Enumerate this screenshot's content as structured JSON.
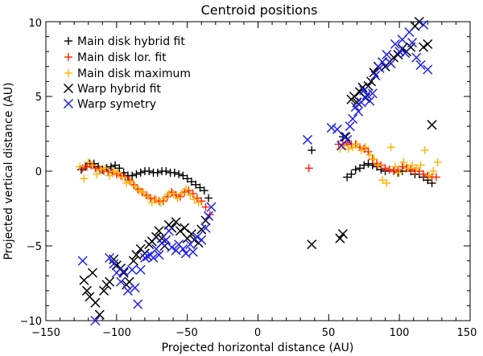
{
  "chart_data": {
    "type": "scatter",
    "title": "Centroid positions",
    "xlabel": "Projected horizontal distance (AU)",
    "ylabel": "Projected vertical distance (AU)",
    "xlim": [
      -150,
      150
    ],
    "ylim": [
      -10,
      10
    ],
    "xticks": [
      -150,
      -100,
      -50,
      0,
      50,
      100,
      150
    ],
    "yticks": [
      -10,
      -5,
      0,
      5,
      10
    ],
    "xtick_labels": [
      "−150",
      "−100",
      "−50",
      "0",
      "50",
      "100",
      "150"
    ],
    "ytick_labels": [
      "−10",
      "−5",
      "0",
      "5",
      "10"
    ],
    "legend_position": "top-left",
    "series": [
      {
        "name": "Main disk hybrid fit",
        "marker": "plus",
        "color": "#000000",
        "points": [
          [
            -125,
            0.1
          ],
          [
            -122,
            0.3
          ],
          [
            -119,
            0.5
          ],
          [
            -116,
            0.5
          ],
          [
            -113,
            0.3
          ],
          [
            -110,
            0.1
          ],
          [
            -107,
            0.2
          ],
          [
            -104,
            0.3
          ],
          [
            -101,
            0.4
          ],
          [
            -98,
            0.2
          ],
          [
            -95,
            -0.1
          ],
          [
            -92,
            -0.3
          ],
          [
            -89,
            -0.3
          ],
          [
            -86,
            -0.2
          ],
          [
            -83,
            -0.1
          ],
          [
            -80,
            0.0
          ],
          [
            -77,
            0.0
          ],
          [
            -74,
            -0.1
          ],
          [
            -71,
            -0.1
          ],
          [
            -68,
            0.0
          ],
          [
            -65,
            0.0
          ],
          [
            -62,
            -0.1
          ],
          [
            -59,
            -0.1
          ],
          [
            -56,
            -0.2
          ],
          [
            -53,
            -0.3
          ],
          [
            -50,
            -0.5
          ],
          [
            -47,
            -0.7
          ],
          [
            -44,
            -0.9
          ],
          [
            -41,
            -1.1
          ],
          [
            -38,
            -1.3
          ],
          [
            -35,
            -1.8
          ],
          [
            38,
            1.4
          ],
          [
            60,
            2.3
          ],
          [
            63,
            -0.4
          ],
          [
            66,
            -0.2
          ],
          [
            69,
            0.1
          ],
          [
            72,
            0.2
          ],
          [
            75,
            0.4
          ],
          [
            78,
            0.5
          ],
          [
            81,
            0.4
          ],
          [
            84,
            0.3
          ],
          [
            87,
            0.1
          ],
          [
            90,
            0.0
          ],
          [
            93,
            0.1
          ],
          [
            96,
            0.0
          ],
          [
            99,
            -0.1
          ],
          [
            102,
            0.0
          ],
          [
            105,
            0.2
          ],
          [
            108,
            0.0
          ],
          [
            111,
            -0.2
          ],
          [
            114,
            -0.2
          ],
          [
            117,
            -0.4
          ],
          [
            120,
            -0.6
          ],
          [
            123,
            -0.8
          ]
        ]
      },
      {
        "name": "Main disk lor. fit",
        "marker": "plus",
        "color": "#ff2200",
        "points": [
          [
            -124,
            0.2
          ],
          [
            -121,
            0.3
          ],
          [
            -118,
            0.4
          ],
          [
            -115,
            0.2
          ],
          [
            -112,
            0.1
          ],
          [
            -109,
            0.0
          ],
          [
            -106,
            0.0
          ],
          [
            -103,
            -0.1
          ],
          [
            -100,
            -0.2
          ],
          [
            -97,
            -0.3
          ],
          [
            -94,
            -0.4
          ],
          [
            -91,
            -0.6
          ],
          [
            -88,
            -0.9
          ],
          [
            -85,
            -1.2
          ],
          [
            -82,
            -1.4
          ],
          [
            -79,
            -1.6
          ],
          [
            -76,
            -1.8
          ],
          [
            -73,
            -1.9
          ],
          [
            -70,
            -2.0
          ],
          [
            -67,
            -2.0
          ],
          [
            -64,
            -1.7
          ],
          [
            -61,
            -1.4
          ],
          [
            -58,
            -1.6
          ],
          [
            -55,
            -1.7
          ],
          [
            -52,
            -1.4
          ],
          [
            -49,
            -1.3
          ],
          [
            -46,
            -1.5
          ],
          [
            -43,
            -1.8
          ],
          [
            -40,
            -2.0
          ],
          [
            -37,
            -2.4
          ],
          [
            -34,
            -2.9
          ],
          [
            36,
            0.2
          ],
          [
            57,
            1.8
          ],
          [
            60,
            1.8
          ],
          [
            63,
            1.9
          ],
          [
            66,
            1.8
          ],
          [
            69,
            1.8
          ],
          [
            72,
            1.6
          ],
          [
            75,
            1.5
          ],
          [
            78,
            1.3
          ],
          [
            81,
            0.8
          ],
          [
            84,
            0.5
          ],
          [
            87,
            0.4
          ],
          [
            90,
            0.2
          ],
          [
            93,
            0.1
          ],
          [
            96,
            0.0
          ],
          [
            99,
            0.1
          ],
          [
            102,
            0.3
          ],
          [
            105,
            0.2
          ],
          [
            108,
            0.1
          ],
          [
            111,
            0.0
          ],
          [
            114,
            0.0
          ],
          [
            117,
            -0.2
          ],
          [
            120,
            -0.3
          ],
          [
            123,
            -0.4
          ],
          [
            126,
            -0.4
          ]
        ]
      },
      {
        "name": "Main disk maximum",
        "marker": "plus",
        "color": "#ffb400",
        "points": [
          [
            -126,
            0.3
          ],
          [
            -123,
            -0.5
          ],
          [
            -120,
            0.6
          ],
          [
            -117,
            0.4
          ],
          [
            -114,
            -0.2
          ],
          [
            -111,
            0.1
          ],
          [
            -108,
            0.2
          ],
          [
            -105,
            -0.3
          ],
          [
            -102,
            0.0
          ],
          [
            -99,
            -0.1
          ],
          [
            -96,
            -0.4
          ],
          [
            -93,
            -0.8
          ],
          [
            -90,
            -0.7
          ],
          [
            -87,
            -1.0
          ],
          [
            -84,
            -1.3
          ],
          [
            -81,
            -1.4
          ],
          [
            -78,
            -1.7
          ],
          [
            -75,
            -2.1
          ],
          [
            -72,
            -1.9
          ],
          [
            -69,
            -2.1
          ],
          [
            -66,
            -1.8
          ],
          [
            -63,
            -1.5
          ],
          [
            -60,
            -1.5
          ],
          [
            -57,
            -1.8
          ],
          [
            -54,
            -1.5
          ],
          [
            -51,
            -1.2
          ],
          [
            -48,
            -1.6
          ],
          [
            -45,
            -1.9
          ],
          [
            -42,
            -2.1
          ],
          [
            58,
            1.5
          ],
          [
            61,
            1.7
          ],
          [
            64,
            1.5
          ],
          [
            67,
            1.6
          ],
          [
            70,
            1.8
          ],
          [
            73,
            1.4
          ],
          [
            76,
            1.6
          ],
          [
            79,
            1.1
          ],
          [
            82,
            0.8
          ],
          [
            85,
            0.4
          ],
          [
            88,
            -0.6
          ],
          [
            91,
            -0.8
          ],
          [
            94,
            1.6
          ],
          [
            97,
            0.3
          ],
          [
            100,
            -0.1
          ],
          [
            103,
            0.6
          ],
          [
            106,
            0.2
          ],
          [
            109,
            0.4
          ],
          [
            112,
            0.2
          ],
          [
            115,
            0.4
          ],
          [
            118,
            1.4
          ],
          [
            121,
            -0.3
          ],
          [
            124,
            0.0
          ],
          [
            127,
            0.6
          ]
        ]
      },
      {
        "name": "Warp hybrid fit",
        "marker": "x",
        "color": "#000000",
        "points": [
          [
            -123,
            -7.3
          ],
          [
            -121,
            -8.0
          ],
          [
            -119,
            -8.4
          ],
          [
            -117,
            -6.8
          ],
          [
            -115,
            -8.8
          ],
          [
            -112,
            -9.6
          ],
          [
            -109,
            -8.0
          ],
          [
            -107,
            -7.6
          ],
          [
            -105,
            -7.4
          ],
          [
            -102,
            -5.9
          ],
          [
            -100,
            -6.3
          ],
          [
            -97,
            -6.5
          ],
          [
            -95,
            -6.8
          ],
          [
            -93,
            -7.6
          ],
          [
            -91,
            -7.4
          ],
          [
            -88,
            -6.0
          ],
          [
            -86,
            -5.6
          ],
          [
            -83,
            -5.2
          ],
          [
            -80,
            -5.5
          ],
          [
            -77,
            -4.9
          ],
          [
            -75,
            -4.7
          ],
          [
            -72,
            -4.4
          ],
          [
            -70,
            -4.0
          ],
          [
            -68,
            -4.5
          ],
          [
            -66,
            -5.0
          ],
          [
            -63,
            -3.6
          ],
          [
            -61,
            -3.8
          ],
          [
            -58,
            -3.4
          ],
          [
            -55,
            -4.0
          ],
          [
            -52,
            -3.8
          ],
          [
            -50,
            -4.5
          ],
          [
            -47,
            -4.2
          ],
          [
            -45,
            -4.6
          ],
          [
            -42,
            -4.8
          ],
          [
            -40,
            -3.9
          ],
          [
            -37,
            -3.3
          ],
          [
            38,
            -4.9
          ],
          [
            58,
            -4.5
          ],
          [
            60,
            -4.2
          ],
          [
            62,
            2.3
          ],
          [
            66,
            4.8
          ],
          [
            68,
            5.0
          ],
          [
            70,
            4.6
          ],
          [
            72,
            5.3
          ],
          [
            74,
            5.6
          ],
          [
            76,
            4.9
          ],
          [
            78,
            5.7
          ],
          [
            80,
            6.0
          ],
          [
            82,
            6.6
          ],
          [
            85,
            7.0
          ],
          [
            88,
            7.3
          ],
          [
            90,
            7.0
          ],
          [
            93,
            7.3
          ],
          [
            96,
            7.6
          ],
          [
            99,
            7.8
          ],
          [
            102,
            8.2
          ],
          [
            105,
            8.0
          ],
          [
            108,
            8.3
          ],
          [
            111,
            9.7
          ],
          [
            114,
            10.0
          ],
          [
            117,
            8.3
          ],
          [
            120,
            8.5
          ],
          [
            123,
            3.1
          ]
        ]
      },
      {
        "name": "Warp symetry",
        "marker": "x",
        "color": "#2222ee",
        "points": [
          [
            -124,
            -6.0
          ],
          [
            -115,
            -10.0
          ],
          [
            -105,
            -5.8
          ],
          [
            -102,
            -6.2
          ],
          [
            -100,
            -6.8
          ],
          [
            -97,
            -7.4
          ],
          [
            -95,
            -6.7
          ],
          [
            -92,
            -8.0
          ],
          [
            -89,
            -6.6
          ],
          [
            -87,
            -7.8
          ],
          [
            -85,
            -8.9
          ],
          [
            -83,
            -6.6
          ],
          [
            -80,
            -5.8
          ],
          [
            -78,
            -5.7
          ],
          [
            -76,
            -5.6
          ],
          [
            -74,
            -5.8
          ],
          [
            -72,
            -5.2
          ],
          [
            -70,
            -5.6
          ],
          [
            -68,
            -4.8
          ],
          [
            -65,
            -4.6
          ],
          [
            -63,
            -4.0
          ],
          [
            -61,
            -5.1
          ],
          [
            -58,
            -5.3
          ],
          [
            -56,
            -4.9
          ],
          [
            -53,
            -5.2
          ],
          [
            -51,
            -5.5
          ],
          [
            -48,
            -4.9
          ],
          [
            -46,
            -5.4
          ],
          [
            -43,
            -4.4
          ],
          [
            -40,
            -4.6
          ],
          [
            -37,
            -3.8
          ],
          [
            -35,
            -3.0
          ],
          [
            -33,
            -2.4
          ],
          [
            35,
            2.1
          ],
          [
            52,
            2.9
          ],
          [
            56,
            2.8
          ],
          [
            59,
            1.7
          ],
          [
            61,
            2.3
          ],
          [
            63,
            2.1
          ],
          [
            65,
            3.0
          ],
          [
            67,
            3.5
          ],
          [
            69,
            4.3
          ],
          [
            71,
            4.0
          ],
          [
            73,
            4.6
          ],
          [
            75,
            5.4
          ],
          [
            77,
            5.1
          ],
          [
            79,
            4.7
          ],
          [
            81,
            5.2
          ],
          [
            83,
            6.4
          ],
          [
            86,
            6.9
          ],
          [
            88,
            7.3
          ],
          [
            91,
            7.8
          ],
          [
            94,
            7.2
          ],
          [
            97,
            8.5
          ],
          [
            100,
            8.0
          ],
          [
            102,
            8.8
          ],
          [
            104,
            7.9
          ],
          [
            107,
            9.3
          ],
          [
            109,
            8.6
          ],
          [
            112,
            7.6
          ],
          [
            115,
            7.1
          ],
          [
            117,
            9.8
          ],
          [
            120,
            6.8
          ]
        ]
      }
    ]
  }
}
